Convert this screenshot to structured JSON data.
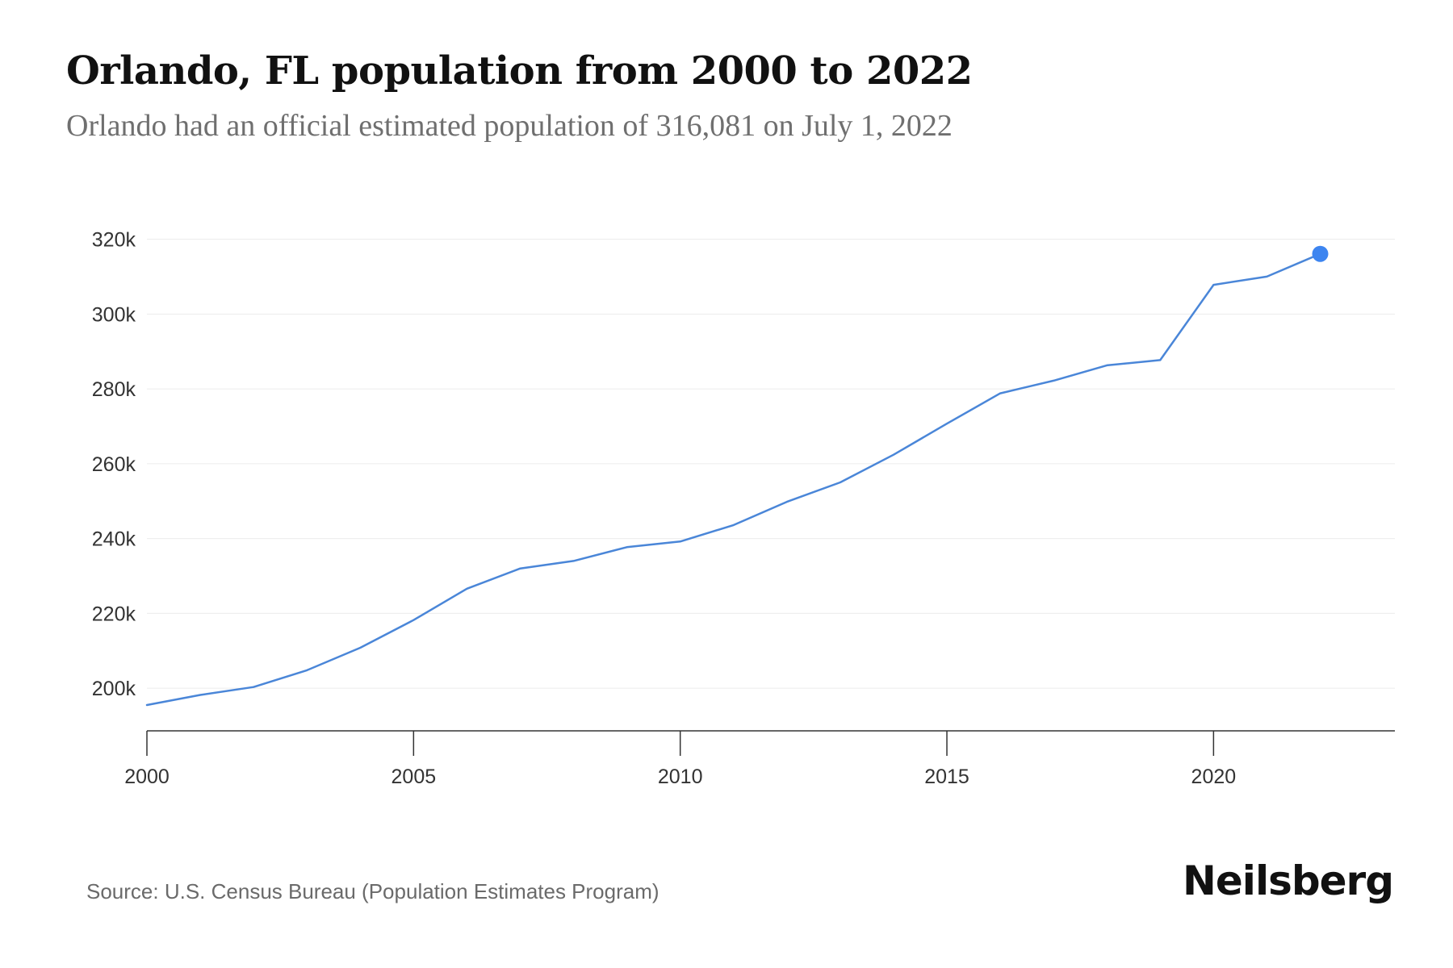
{
  "header": {
    "title": "Orlando, FL population from 2000 to 2022",
    "subtitle": "Orlando had an official estimated population of 316,081 on July 1, 2022"
  },
  "footer": {
    "source": "Source: U.S. Census Bureau (Population Estimates Program)",
    "brand": "Neilsberg"
  },
  "colors": {
    "line": "#4a86d8",
    "last_point": "#3d85f0",
    "grid": "#ececec",
    "axis": "#333333"
  },
  "chart_data": {
    "type": "line",
    "title": "Orlando, FL population from 2000 to 2022",
    "subtitle": "Orlando had an official estimated population of 316,081 on July 1, 2022",
    "xlabel": "",
    "ylabel": "",
    "x": [
      2000,
      2001,
      2002,
      2003,
      2004,
      2005,
      2006,
      2007,
      2008,
      2009,
      2010,
      2011,
      2012,
      2013,
      2014,
      2015,
      2016,
      2017,
      2018,
      2019,
      2020,
      2021,
      2022
    ],
    "series": [
      {
        "name": "",
        "values": [
          195500,
          198200,
          200300,
          204800,
          210800,
          218200,
          226600,
          232000,
          234000,
          237700,
          239200,
          243600,
          249800,
          255000,
          262400,
          270700,
          278800,
          282200,
          286300,
          287700,
          307800,
          310000,
          316081
        ]
      }
    ],
    "xlim": [
      2000,
      2023.4
    ],
    "ylim": [
      188600,
      324000
    ],
    "x_ticks": [
      2000,
      2005,
      2010,
      2015,
      2020
    ],
    "x_tick_labels": [
      "2000",
      "2005",
      "2010",
      "2015",
      "2020"
    ],
    "y_ticks": [
      200000,
      220000,
      240000,
      260000,
      280000,
      300000,
      320000
    ],
    "y_tick_labels": [
      "200k",
      "220k",
      "240k",
      "260k",
      "280k",
      "300k",
      "320k"
    ],
    "grid": true,
    "legend": "none",
    "highlight_last_point": true
  }
}
